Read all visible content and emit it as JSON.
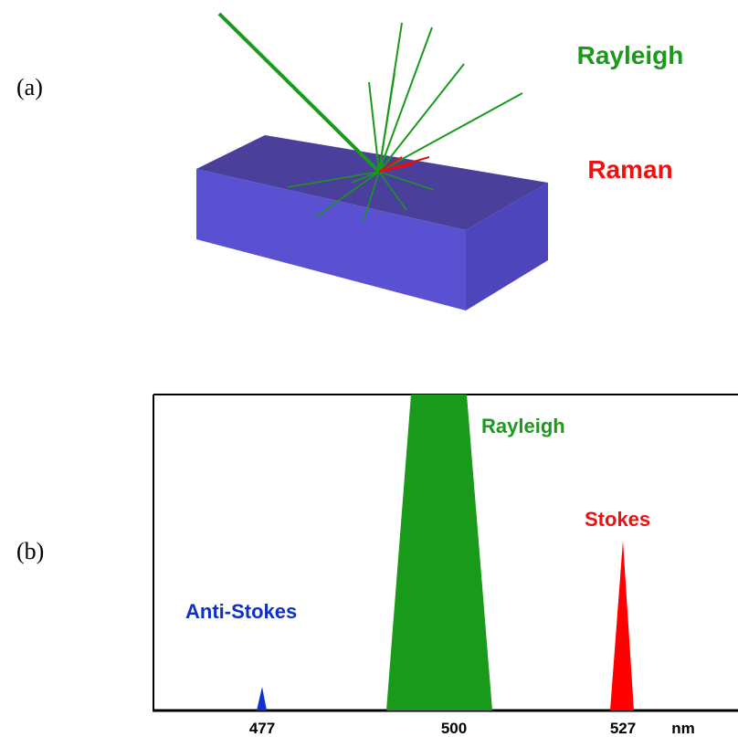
{
  "panel_a": {
    "label": "(a)",
    "rayleigh": "Rayleigh",
    "raman": "Raman"
  },
  "panel_b": {
    "label": "(b)",
    "peaks": {
      "rayleigh": "Rayleigh",
      "stokes": "Stokes",
      "anti_stokes": "Anti-Stokes"
    },
    "axis": {
      "ticks": [
        "477",
        "500",
        "527"
      ],
      "unit": "nm"
    }
  }
}
